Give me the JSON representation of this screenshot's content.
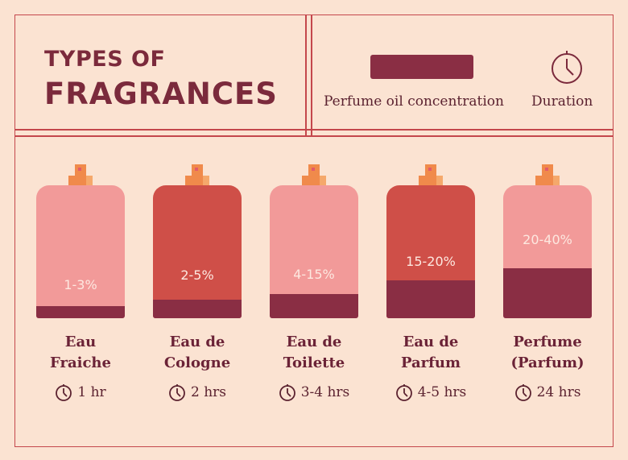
{
  "header": {
    "title_line1": "TYPES OF",
    "title_line2": "FRAGRANCES"
  },
  "legend": {
    "concentration": "Perfume oil concentration",
    "duration": "Duration"
  },
  "items": [
    {
      "name": [
        "Eau",
        "Fraiche"
      ],
      "concentration": "1-3%",
      "duration": "1 hr"
    },
    {
      "name": [
        "Eau de",
        "Cologne"
      ],
      "concentration": "2-5%",
      "duration": "2 hrs"
    },
    {
      "name": [
        "Eau de",
        "Toilette"
      ],
      "concentration": "4-15%",
      "duration": "3-4 hrs"
    },
    {
      "name": [
        "Eau de",
        "Parfum"
      ],
      "concentration": "15-20%",
      "duration": "4-5 hrs"
    },
    {
      "name": [
        "Perfume",
        "(Parfum)"
      ],
      "concentration": "20-40%",
      "duration": "24 hrs"
    }
  ]
}
